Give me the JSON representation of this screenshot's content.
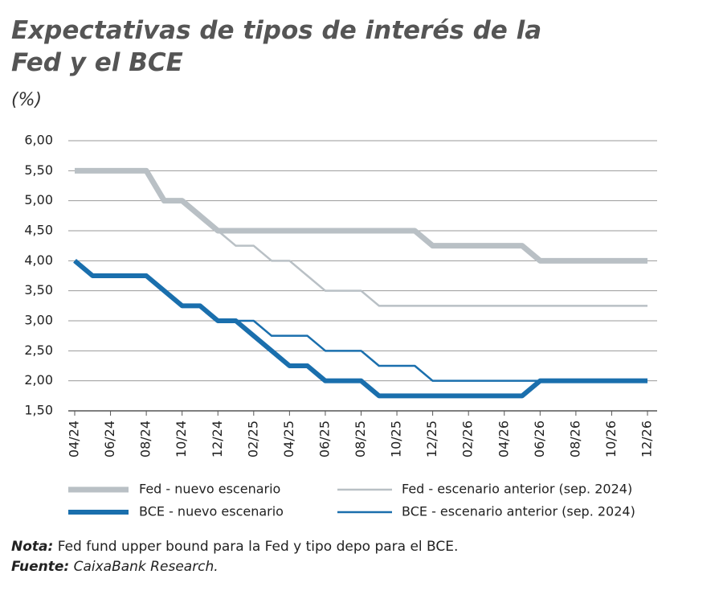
{
  "chart_data": {
    "type": "line",
    "title": "Expectativas de tipos de interés de la Fed y el BCE",
    "subtitle": "(%)",
    "categories": [
      "04/24",
      null,
      "06/24",
      null,
      "08/24",
      null,
      "10/24",
      null,
      "12/24",
      null,
      "02/25",
      null,
      "04/25",
      null,
      "06/25",
      null,
      "08/25",
      null,
      "10/25",
      null,
      "12/25",
      null,
      "02/26",
      null,
      "04/26",
      null,
      "06/26",
      null,
      "08/26",
      null,
      "10/26",
      null,
      "12/26"
    ],
    "ylim": [
      1.5,
      6
    ],
    "yticks": [
      {
        "value": 1.5,
        "label": "1,50"
      },
      {
        "value": 2,
        "label": "2,00"
      },
      {
        "value": 2.5,
        "label": "2,50"
      },
      {
        "value": 3,
        "label": "3,00"
      },
      {
        "value": 3.5,
        "label": "3,50"
      },
      {
        "value": 4,
        "label": "4,00"
      },
      {
        "value": 4.5,
        "label": "4,50"
      },
      {
        "value": 5,
        "label": "5,00"
      },
      {
        "value": 5.5,
        "label": "5,50"
      },
      {
        "value": 6,
        "label": "6,00"
      }
    ],
    "grid": true,
    "series": [
      {
        "name": "Fed - nuevo escenario",
        "color": "#b9c0c5",
        "line_width": 7,
        "values": [
          5.5,
          5.5,
          5.5,
          5.5,
          5.5,
          5.0,
          5.0,
          4.75,
          4.5,
          4.5,
          4.5,
          4.5,
          4.5,
          4.5,
          4.5,
          4.5,
          4.5,
          4.5,
          4.5,
          4.5,
          4.25,
          4.25,
          4.25,
          4.25,
          4.25,
          4.25,
          4.0,
          4.0,
          4.0,
          4.0,
          4.0,
          4.0,
          4.0
        ]
      },
      {
        "name": "Fed - escenario anterior (sep. 2024)",
        "color": "#b9c0c5",
        "line_width": 2.5,
        "values": [
          5.5,
          5.5,
          5.5,
          5.5,
          5.5,
          5.0,
          5.0,
          4.75,
          4.5,
          4.25,
          4.25,
          4.0,
          4.0,
          3.75,
          3.5,
          3.5,
          3.5,
          3.25,
          3.25,
          3.25,
          3.25,
          3.25,
          3.25,
          3.25,
          3.25,
          3.25,
          3.25,
          3.25,
          3.25,
          3.25,
          3.25,
          3.25,
          3.25
        ]
      },
      {
        "name": "BCE - nuevo escenario",
        "color": "#1a6fad",
        "line_width": 6,
        "values": [
          4.0,
          3.75,
          3.75,
          3.75,
          3.75,
          3.5,
          3.25,
          3.25,
          3.0,
          3.0,
          2.75,
          2.5,
          2.25,
          2.25,
          2.0,
          2.0,
          2.0,
          1.75,
          1.75,
          1.75,
          1.75,
          1.75,
          1.75,
          1.75,
          1.75,
          1.75,
          2.0,
          2.0,
          2.0,
          2.0,
          2.0,
          2.0,
          2.0
        ]
      },
      {
        "name": "BCE - escenario anterior (sep. 2024)",
        "color": "#1a6fad",
        "line_width": 2.5,
        "values": [
          4.0,
          3.75,
          3.75,
          3.75,
          3.75,
          3.5,
          3.25,
          3.25,
          3.0,
          3.0,
          3.0,
          2.75,
          2.75,
          2.75,
          2.5,
          2.5,
          2.5,
          2.25,
          2.25,
          2.25,
          2.0,
          2.0,
          2.0,
          2.0,
          2.0,
          2.0,
          2.0,
          2.0,
          2.0,
          2.0,
          2.0,
          2.0,
          2.0
        ]
      }
    ],
    "note": {
      "label": "Nota:",
      "text": "Fed fund upper bound para la Fed y tipo depo para el BCE."
    },
    "source": {
      "label": "Fuente:",
      "text": "CaixaBank Research."
    }
  }
}
